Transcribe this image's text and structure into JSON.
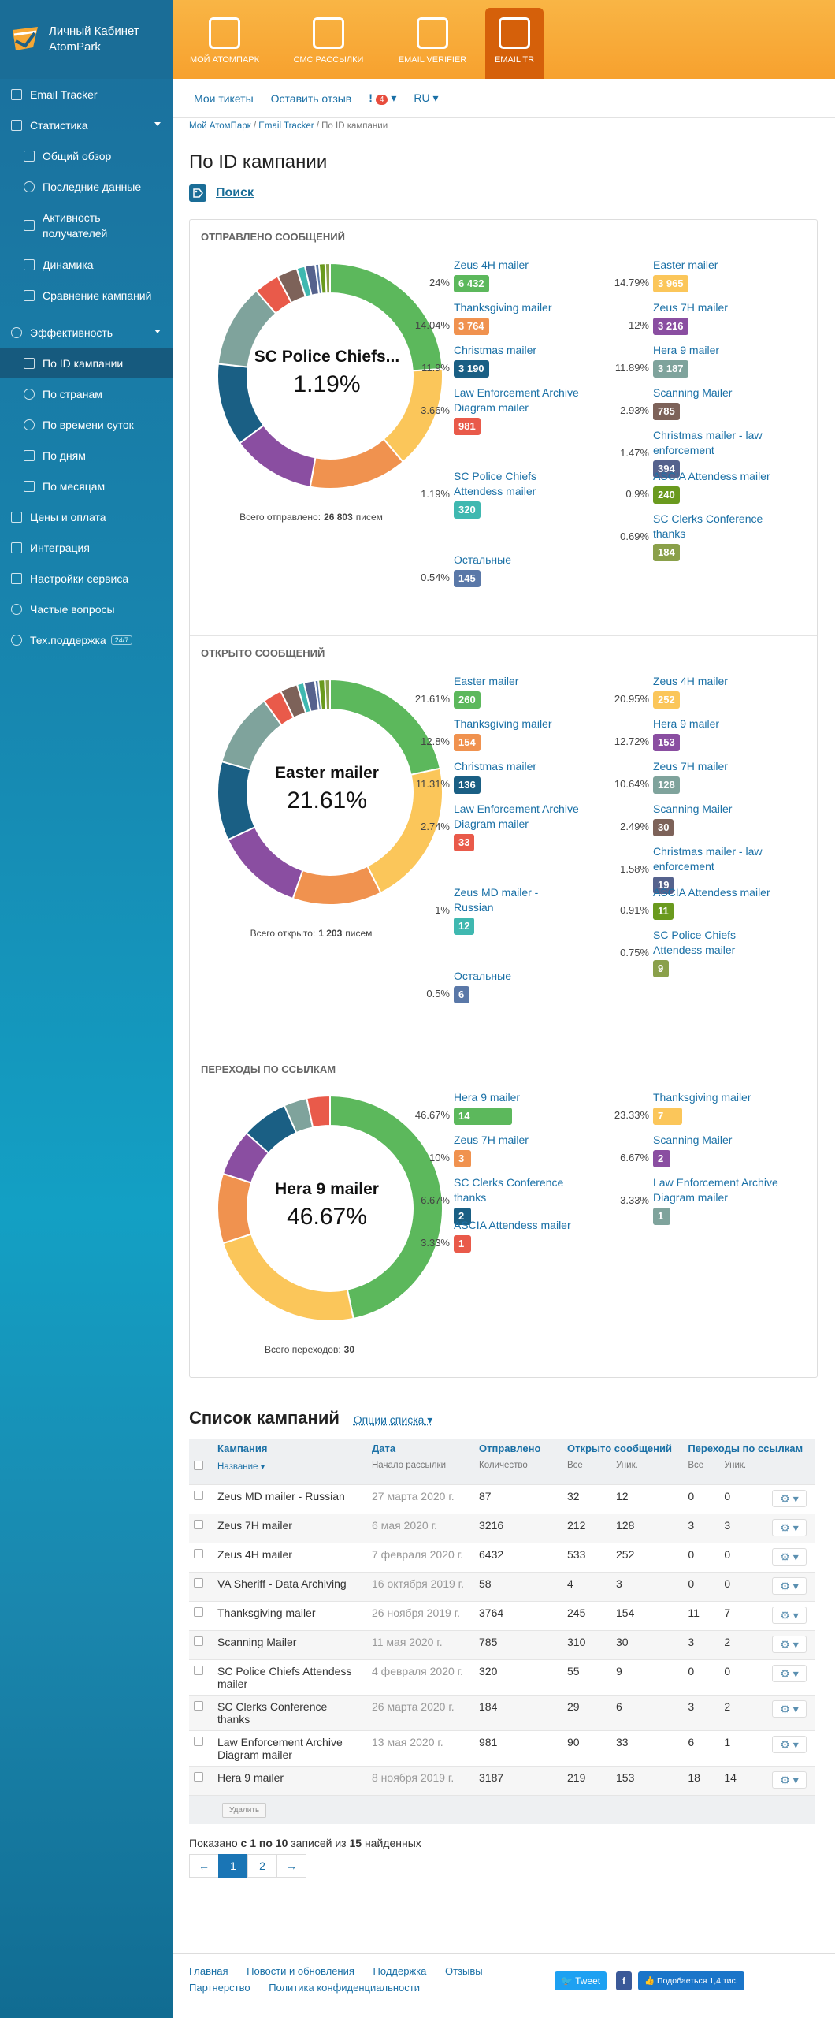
{
  "app": {
    "title_line1": "Личный Кабинет",
    "title_line2": "AtomPark"
  },
  "top_tabs": [
    {
      "label": "Мой АтомПарк"
    },
    {
      "label": "СМС рассылки"
    },
    {
      "label": "Email Verifier"
    },
    {
      "label": "Email Tr"
    }
  ],
  "subnav": {
    "tickets": "Мои тикеты",
    "feedback": "Оставить отзыв",
    "alert_glyph": "!",
    "alert_count": "4",
    "lang": "RU"
  },
  "sidebar": [
    {
      "label": "Email Tracker",
      "icon": "grid-icon"
    },
    {
      "label": "Статистика",
      "icon": "checkbox-icon"
    },
    {
      "label": "Общий обзор",
      "icon": "list-icon"
    },
    {
      "label": "Последние данные",
      "icon": "clock-icon"
    },
    {
      "label": "Активность получателей",
      "icon": "user-icon"
    },
    {
      "label": "Динамика",
      "icon": "wave-icon"
    },
    {
      "label": "Сравнение кампаний",
      "icon": "compare-icon"
    },
    {
      "label": "Эффективность",
      "icon": "target-icon"
    },
    {
      "label": "По ID кампании",
      "icon": "id-icon"
    },
    {
      "label": "По странам",
      "icon": "globe-icon"
    },
    {
      "label": "По времени суток",
      "icon": "clock-icon"
    },
    {
      "label": "По дням",
      "icon": "calendar-icon"
    },
    {
      "label": "По месяцам",
      "icon": "calendar-icon"
    },
    {
      "label": "Цены и оплата",
      "icon": "price-icon"
    },
    {
      "label": "Интеграция",
      "icon": "link-icon"
    },
    {
      "label": "Настройки сервиса",
      "icon": "settings-icon"
    },
    {
      "label": "Частые вопросы",
      "icon": "question-icon"
    },
    {
      "label": "Тех.поддержка",
      "icon": "support-icon",
      "badge": "24/7"
    }
  ],
  "breadcrumb": [
    "Мой АтомПарк",
    "Email Tracker",
    "По ID кампании"
  ],
  "page_title": "По ID кампании",
  "search_label": "Поиск",
  "sections": [
    {
      "title": "Отправлено сообщений",
      "center_name": "SC Police Chiefs...",
      "center_pct": "1.19%",
      "total_label": "Всего отправлено:",
      "total_value": "26 803",
      "total_suffix": "писем",
      "left": [
        {
          "pct": "24%",
          "name": "Zeus 4H mailer",
          "value": "6 432",
          "color": "#5cb85c"
        },
        {
          "pct": "14.04%",
          "name": "Thanksgiving mailer",
          "value": "3 764",
          "color": "#f0924f"
        },
        {
          "pct": "11.9%",
          "name": "Christmas mailer",
          "value": "3 190",
          "color": "#1a5f84"
        },
        {
          "pct": "3.66%",
          "name": "Law Enforcement Archive Diagram mailer",
          "value": "981",
          "color": "#e95a4a"
        },
        {
          "pct": "1.19%",
          "name": "SC Police Chiefs Attendess mailer",
          "value": "320",
          "color": "#3fb8b0"
        },
        {
          "pct": "0.54%",
          "name": "Остальные",
          "value": "145",
          "color": "#5a78a8"
        }
      ],
      "right": [
        {
          "pct": "14.79%",
          "name": "Easter mailer",
          "value": "3 965",
          "color": "#fbc65a"
        },
        {
          "pct": "12%",
          "name": "Zeus 7H mailer",
          "value": "3 216",
          "color": "#8a4ea1"
        },
        {
          "pct": "11.89%",
          "name": "Hera 9 mailer",
          "value": "3 187",
          "color": "#7fa39c"
        },
        {
          "pct": "2.93%",
          "name": "Scanning Mailer",
          "value": "785",
          "color": "#7d6259"
        },
        {
          "pct": "1.47%",
          "name": "Christmas mailer - law enforcement",
          "value": "394",
          "color": "#55628d"
        },
        {
          "pct": "0.9%",
          "name": "ASCIA Attendess mailer",
          "value": "240",
          "color": "#6a9a1e"
        },
        {
          "pct": "0.69%",
          "name": "SC Clerks Conference thanks",
          "value": "184",
          "color": "#8aa04a"
        }
      ]
    },
    {
      "title": "Открыто сообщений",
      "center_name": "Easter mailer",
      "center_pct": "21.61%",
      "total_label": "Всего открыто:",
      "total_value": "1 203",
      "total_suffix": "писем",
      "left": [
        {
          "pct": "21.61%",
          "name": "Easter mailer",
          "value": "260",
          "color": "#5cb85c"
        },
        {
          "pct": "12.8%",
          "name": "Thanksgiving mailer",
          "value": "154",
          "color": "#f0924f"
        },
        {
          "pct": "11.31%",
          "name": "Christmas mailer",
          "value": "136",
          "color": "#1a5f84"
        },
        {
          "pct": "2.74%",
          "name": "Law Enforcement Archive Diagram mailer",
          "value": "33",
          "color": "#e95a4a"
        },
        {
          "pct": "1%",
          "name": "Zeus MD mailer - Russian",
          "value": "12",
          "color": "#3fb8b0"
        },
        {
          "pct": "0.5%",
          "name": "Остальные",
          "value": "6",
          "color": "#5a78a8"
        }
      ],
      "right": [
        {
          "pct": "20.95%",
          "name": "Zeus 4H mailer",
          "value": "252",
          "color": "#fbc65a"
        },
        {
          "pct": "12.72%",
          "name": "Hera 9 mailer",
          "value": "153",
          "color": "#8a4ea1"
        },
        {
          "pct": "10.64%",
          "name": "Zeus 7H mailer",
          "value": "128",
          "color": "#7fa39c"
        },
        {
          "pct": "2.49%",
          "name": "Scanning Mailer",
          "value": "30",
          "color": "#7d6259"
        },
        {
          "pct": "1.58%",
          "name": "Christmas mailer - law enforcement",
          "value": "19",
          "color": "#55628d"
        },
        {
          "pct": "0.91%",
          "name": "ASCIA Attendess mailer",
          "value": "11",
          "color": "#6a9a1e"
        },
        {
          "pct": "0.75%",
          "name": "SC Police Chiefs Attendess mailer",
          "value": "9",
          "color": "#8aa04a"
        }
      ]
    },
    {
      "title": "Переходы по ссылкам",
      "center_name": "Hera 9 mailer",
      "center_pct": "46.67%",
      "total_label": "Всего переходов:",
      "total_value": "30",
      "total_suffix": "",
      "left": [
        {
          "pct": "46.67%",
          "name": "Hera 9 mailer",
          "value": "14",
          "color": "#5cb85c"
        },
        {
          "pct": "10%",
          "name": "Zeus 7H mailer",
          "value": "3",
          "color": "#f0924f"
        },
        {
          "pct": "6.67%",
          "name": "SC Clerks Conference thanks",
          "value": "2",
          "color": "#1a5f84"
        },
        {
          "pct": "3.33%",
          "name": "ASCIA Attendess mailer",
          "value": "1",
          "color": "#e95a4a"
        }
      ],
      "right": [
        {
          "pct": "23.33%",
          "name": "Thanksgiving mailer",
          "value": "7",
          "color": "#fbc65a"
        },
        {
          "pct": "6.67%",
          "name": "Scanning Mailer",
          "value": "2",
          "color": "#8a4ea1"
        },
        {
          "pct": "3.33%",
          "name": "Law Enforcement Archive Diagram mailer",
          "value": "1",
          "color": "#7fa39c"
        }
      ]
    }
  ],
  "campaigns": {
    "title": "Список кампаний",
    "options": "Опции списка",
    "head": {
      "campaign": "Кампания",
      "date": "Дата",
      "sent": "Отправлено",
      "opened": "Открыто сообщений",
      "clicks": "Переходы по ссылкам"
    },
    "sub": {
      "name": "Название ▾",
      "date": "Начало рассылки",
      "count": "Количество",
      "all1": "Все",
      "uniq1": "Уник.",
      "all2": "Все",
      "uniq2": "Уник."
    },
    "rows": [
      [
        "Zeus MD mailer - Russian",
        "27 марта 2020 г.",
        "87",
        "32",
        "12",
        "0",
        "0"
      ],
      [
        "Zeus 7H mailer",
        "6 мая 2020 г.",
        "3216",
        "212",
        "128",
        "3",
        "3"
      ],
      [
        "Zeus 4H mailer",
        "7 февраля 2020 г.",
        "6432",
        "533",
        "252",
        "0",
        "0"
      ],
      [
        "VA Sheriff - Data Archiving",
        "16 октября 2019 г.",
        "58",
        "4",
        "3",
        "0",
        "0"
      ],
      [
        "Thanksgiving mailer",
        "26 ноября 2019 г.",
        "3764",
        "245",
        "154",
        "11",
        "7"
      ],
      [
        "Scanning Mailer",
        "11 мая 2020 г.",
        "785",
        "310",
        "30",
        "3",
        "2"
      ],
      [
        "SC Police Chiefs Attendess mailer",
        "4 февраля 2020 г.",
        "320",
        "55",
        "9",
        "0",
        "0"
      ],
      [
        "SC Clerks Conference thanks",
        "26 марта 2020 г.",
        "184",
        "29",
        "6",
        "3",
        "2"
      ],
      [
        "Law Enforcement Archive Diagram mailer",
        "13 мая 2020 г.",
        "981",
        "90",
        "33",
        "6",
        "1"
      ],
      [
        "Hera 9 mailer",
        "8 ноября 2019 г.",
        "3187",
        "219",
        "153",
        "18",
        "14"
      ]
    ],
    "delete": "Удалить",
    "shown_prefix": "Показано",
    "shown_range": "с 1 по 10",
    "shown_mid": "записей из",
    "shown_total": "15",
    "shown_suffix": "найденных",
    "pages": [
      "←",
      "1",
      "2",
      "→"
    ]
  },
  "footer": {
    "links1": [
      "Главная",
      "Новости и обновления",
      "Поддержка",
      "Отзывы"
    ],
    "links2": [
      "Партнерство",
      "Политика конфиденциальности"
    ],
    "tweet": "Tweet",
    "fb": "f",
    "like": "Подобаеться 1,4 тис."
  }
}
